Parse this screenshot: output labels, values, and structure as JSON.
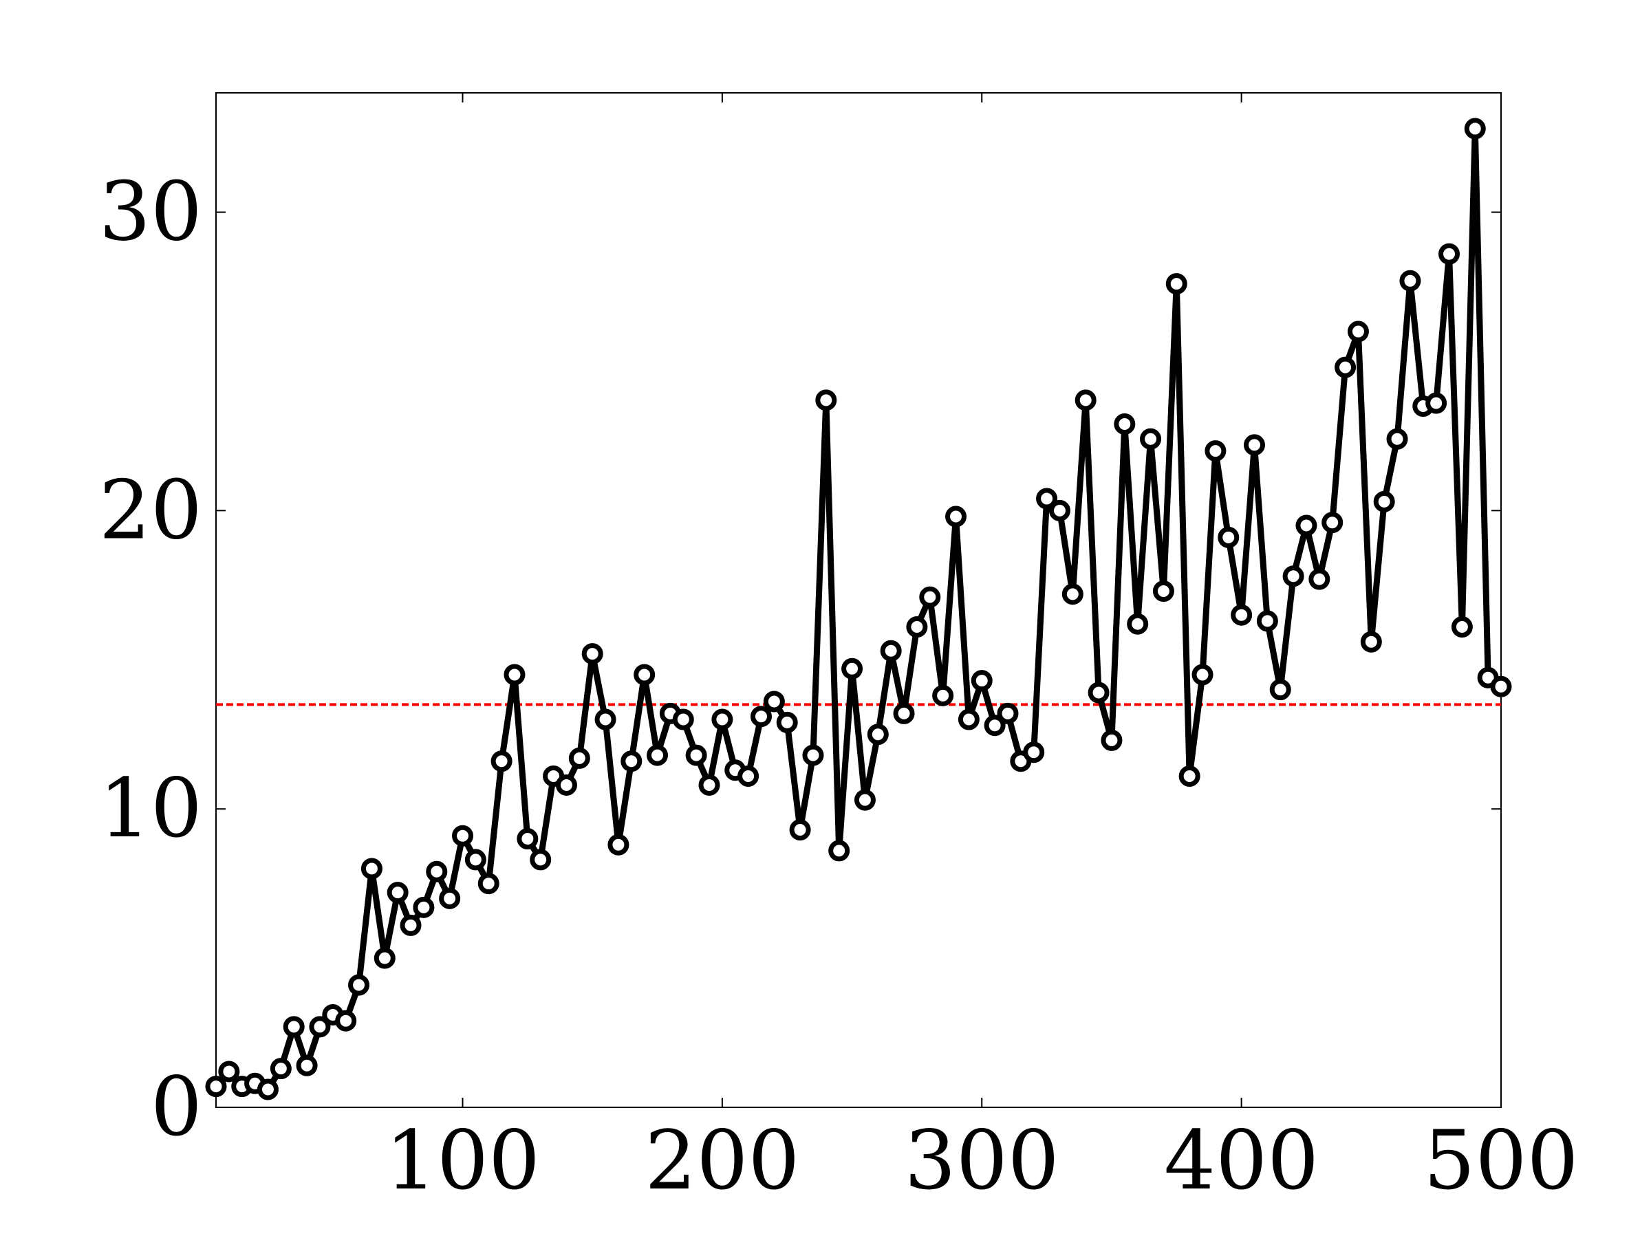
{
  "chart_data": {
    "type": "line",
    "title": "",
    "xlabel": "",
    "ylabel": "",
    "xlim": [
      5,
      500
    ],
    "ylim": [
      0,
      34
    ],
    "x_ticks": [
      100,
      200,
      300,
      400,
      500
    ],
    "y_ticks": [
      0,
      10,
      20,
      30
    ],
    "x_tick_labels": [
      "100",
      "200",
      "300",
      "400",
      "500"
    ],
    "y_tick_labels": [
      "0",
      "10",
      "20",
      "30"
    ],
    "grid": false,
    "legend": "none",
    "series": [
      {
        "color": "#000000",
        "marker": "circle",
        "x": [
          5,
          10,
          15,
          20,
          25,
          30,
          35,
          40,
          45,
          50,
          55,
          60,
          65,
          70,
          75,
          80,
          85,
          90,
          95,
          100,
          105,
          110,
          115,
          120,
          125,
          130,
          135,
          140,
          145,
          150,
          155,
          160,
          165,
          170,
          175,
          180,
          185,
          190,
          195,
          200,
          205,
          210,
          215,
          220,
          225,
          230,
          235,
          240,
          245,
          250,
          255,
          260,
          265,
          270,
          275,
          280,
          285,
          290,
          295,
          300,
          305,
          310,
          315,
          320,
          325,
          330,
          335,
          340,
          345,
          350,
          355,
          360,
          365,
          370,
          375,
          380,
          385,
          390,
          395,
          400,
          405,
          410,
          415,
          420,
          425,
          430,
          435,
          440,
          445,
          450,
          455,
          460,
          465,
          470,
          475,
          480,
          485,
          490,
          495,
          500
        ],
        "y": [
          0.7,
          1.2,
          0.7,
          0.8,
          0.6,
          1.3,
          2.7,
          1.4,
          2.7,
          3.1,
          2.9,
          4.1,
          8.0,
          5.0,
          7.2,
          6.1,
          6.7,
          7.9,
          7.0,
          9.1,
          8.3,
          7.5,
          11.6,
          14.5,
          9.0,
          8.3,
          11.1,
          10.8,
          11.7,
          15.2,
          13.0,
          8.8,
          11.6,
          14.5,
          11.8,
          13.2,
          13.0,
          11.8,
          10.8,
          13.0,
          11.3,
          11.1,
          13.1,
          13.6,
          12.9,
          9.3,
          11.8,
          23.7,
          8.6,
          14.7,
          10.3,
          12.5,
          15.3,
          13.2,
          16.1,
          17.1,
          13.8,
          19.8,
          13.0,
          14.3,
          12.8,
          13.2,
          11.6,
          11.9,
          20.4,
          20.0,
          17.2,
          23.7,
          13.9,
          12.3,
          22.9,
          16.2,
          22.4,
          17.3,
          27.6,
          11.1,
          14.5,
          22.0,
          19.1,
          16.5,
          22.2,
          16.3,
          14.0,
          17.8,
          19.5,
          17.7,
          19.6,
          24.8,
          26.0,
          15.6,
          20.3,
          22.4,
          27.7,
          23.5,
          23.6,
          28.6,
          16.1,
          32.8,
          14.4,
          14.1
        ]
      },
      {
        "color": "#ff0000",
        "style": "dashed",
        "x": [
          5,
          500
        ],
        "y": [
          13.5,
          13.5
        ]
      }
    ]
  }
}
